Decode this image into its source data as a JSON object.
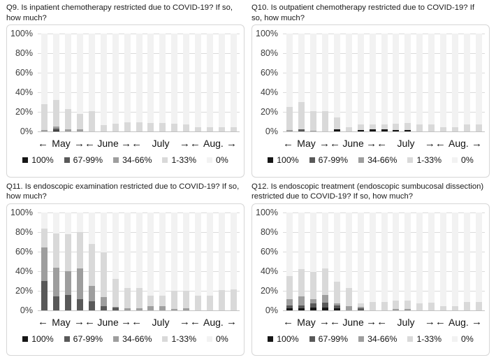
{
  "figure": {
    "description": "Four stacked bar charts of weekly survey answers, May to August, share of hospitals by restriction level",
    "y_ticks": [
      "100%",
      "80%",
      "60%",
      "40%",
      "20%",
      "0%"
    ],
    "ylim": [
      0,
      100
    ],
    "grid": true,
    "arrow_left": "←",
    "arrow_right": "→",
    "months": [
      {
        "label": "May",
        "weeks": 4
      },
      {
        "label": "June",
        "weeks": 4
      },
      {
        "label": "July",
        "weeks": 5
      },
      {
        "label": "Aug.",
        "weeks": 4
      }
    ],
    "legend": [
      {
        "label": "100%",
        "color": "#161616"
      },
      {
        "label": "67-99%",
        "color": "#595959"
      },
      {
        "label": "34-66%",
        "color": "#9e9e9e"
      },
      {
        "label": "1-33%",
        "color": "#d9d9d9"
      },
      {
        "label": "0%",
        "color": "#f2f2f2"
      }
    ],
    "legend_position": "bottom"
  },
  "chart_data": [
    {
      "type": "bar",
      "stacked": true,
      "title": "Q9. Is inpatient chemotherapy restricted due to COVID-19? If so, how much?",
      "series": [
        {
          "name": "100%",
          "values": [
            0,
            1,
            0,
            0,
            0,
            0,
            0,
            0,
            0,
            0,
            0,
            0,
            0,
            0,
            0,
            0,
            0
          ]
        },
        {
          "name": "67-99%",
          "values": [
            0,
            2,
            0,
            0,
            0,
            0,
            0,
            0,
            0,
            0,
            0,
            0,
            0,
            0,
            0,
            0,
            0
          ]
        },
        {
          "name": "34-66%",
          "values": [
            1.5,
            2,
            2,
            2,
            0,
            0,
            0,
            0,
            0,
            0,
            0,
            0,
            0,
            0,
            0,
            0,
            0
          ]
        },
        {
          "name": "1-33%",
          "values": [
            26.5,
            27,
            21,
            16,
            21,
            6.5,
            8,
            9,
            9,
            8.5,
            8.5,
            8,
            7.5,
            4,
            4,
            4,
            4
          ]
        },
        {
          "name": "0%",
          "values": [
            72,
            68,
            77,
            82,
            79,
            93.5,
            92,
            91,
            91,
            91.5,
            91.5,
            92,
            92.5,
            96,
            96,
            96,
            96
          ]
        }
      ]
    },
    {
      "type": "bar",
      "stacked": true,
      "title": "Q10. Is outpatient chemotherapy restricted due to COVID-19? If so, how much?",
      "series": [
        {
          "name": "100%",
          "values": [
            0,
            0,
            0,
            0,
            2,
            0,
            1.5,
            2,
            2,
            1.5,
            1.5,
            0,
            0,
            0,
            0,
            0,
            0
          ]
        },
        {
          "name": "67-99%",
          "values": [
            0,
            2,
            0,
            0,
            0,
            0,
            0,
            0,
            0,
            0,
            0,
            0,
            0,
            0,
            0,
            0,
            0
          ]
        },
        {
          "name": "34-66%",
          "values": [
            1.5,
            0,
            0.5,
            0,
            0,
            0,
            0,
            0,
            0,
            0,
            0,
            0,
            0,
            0,
            0,
            0,
            0
          ]
        },
        {
          "name": "1-33%",
          "values": [
            23.5,
            28,
            20.5,
            21,
            12,
            4,
            5.5,
            5,
            5.5,
            6.5,
            7,
            7.5,
            7.5,
            4,
            4.5,
            7,
            7
          ]
        },
        {
          "name": "0%",
          "values": [
            75,
            70,
            79,
            79,
            86,
            96,
            93,
            93,
            92.5,
            92,
            91.5,
            92.5,
            92.5,
            96,
            95.5,
            93,
            93
          ]
        }
      ]
    },
    {
      "type": "bar",
      "stacked": true,
      "title": "Q11. Is endoscopic examination restricted due to COVID-19? If so, how much?",
      "series": [
        {
          "name": "100%",
          "values": [
            0,
            0,
            0,
            0,
            0,
            0,
            0,
            0,
            0,
            0,
            0,
            0,
            0,
            0,
            0,
            0,
            0
          ]
        },
        {
          "name": "67-99%",
          "values": [
            29.5,
            14,
            15.5,
            11,
            9,
            4,
            2.5,
            0,
            0,
            0,
            0,
            0,
            0,
            0,
            0,
            0,
            0
          ]
        },
        {
          "name": "34-66%",
          "values": [
            34.5,
            29.5,
            24.5,
            31.5,
            15.5,
            9.5,
            0.5,
            2,
            2,
            4,
            4,
            1,
            1.5,
            0,
            0,
            0,
            0
          ]
        },
        {
          "name": "1-33%",
          "values": [
            19,
            34.5,
            37.5,
            37.5,
            43,
            45.5,
            28.5,
            20.5,
            20.5,
            11,
            11,
            19,
            18,
            15,
            15,
            20.5,
            21
          ]
        },
        {
          "name": "0%",
          "values": [
            17,
            22,
            22.5,
            20,
            32.5,
            41,
            68.5,
            77.5,
            77.5,
            85,
            85,
            80,
            80.5,
            85,
            85,
            79.5,
            79
          ]
        }
      ]
    },
    {
      "type": "bar",
      "stacked": true,
      "title": "Q12. Is endoscopic treatment (endoscopic sumbucosal dissection) restricted due to COVID-19? If so, how much?",
      "series": [
        {
          "name": "100%",
          "values": [
            2,
            2,
            2.5,
            2.5,
            2,
            0,
            0,
            0,
            0,
            0,
            0,
            0,
            0,
            0,
            0,
            0,
            0
          ]
        },
        {
          "name": "67-99%",
          "values": [
            3,
            2.5,
            4,
            5,
            2.5,
            0,
            1.5,
            0,
            0,
            0,
            0,
            0,
            0,
            0,
            0,
            0,
            0
          ]
        },
        {
          "name": "34-66%",
          "values": [
            6,
            9.5,
            4.5,
            8,
            2,
            4,
            2,
            0,
            0,
            1,
            1,
            0,
            0,
            0,
            0,
            0,
            0
          ]
        },
        {
          "name": "1-33%",
          "values": [
            24,
            27.5,
            28,
            27,
            22.5,
            18.5,
            3.5,
            8.5,
            8.5,
            9,
            9,
            7,
            7.5,
            4,
            4,
            8.5,
            8
          ]
        },
        {
          "name": "0%",
          "values": [
            65,
            58.5,
            61,
            57.5,
            71,
            77.5,
            93,
            91.5,
            91.5,
            90,
            90,
            93,
            92.5,
            96,
            96,
            91.5,
            92
          ]
        }
      ]
    }
  ]
}
